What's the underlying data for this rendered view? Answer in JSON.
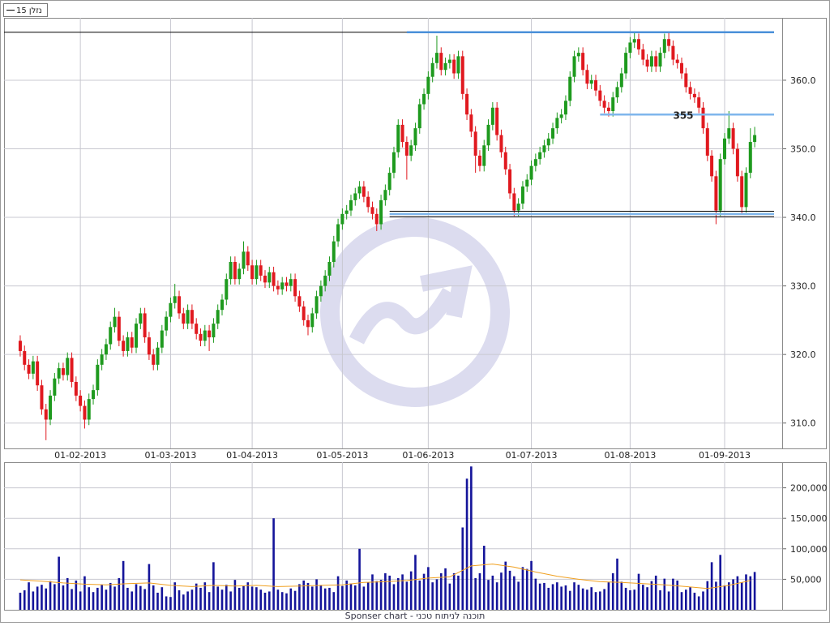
{
  "legend_label": "נזלן 15",
  "footer": "Sponser chart - תוכנה לניתוח טכני",
  "chart_data": [
    {
      "type": "candlestick",
      "up_color": "#1e9a1e",
      "down_color": "#e0191f",
      "grid": true,
      "xlim": [
        -3.2,
        177.4
      ],
      "ylim": [
        306.3,
        369.1
      ],
      "xticks": [
        {
          "value": 14,
          "label": "01-02-2013"
        },
        {
          "value": 35,
          "label": "01-03-2013"
        },
        {
          "value": 54,
          "label": "01-04-2013"
        },
        {
          "value": 75,
          "label": "01-05-2013"
        },
        {
          "value": 95,
          "label": "01-06-2013"
        },
        {
          "value": 119,
          "label": "01-07-2013"
        },
        {
          "value": 142,
          "label": "01-08-2013"
        },
        {
          "value": 164,
          "label": "01-09-2013"
        }
      ],
      "yticks": [
        {
          "value": 310,
          "label": "310.0"
        },
        {
          "value": 320,
          "label": "320.0"
        },
        {
          "value": 330,
          "label": "330.0"
        },
        {
          "value": 340,
          "label": "340.0"
        },
        {
          "value": 350,
          "label": "350.0"
        },
        {
          "value": 360,
          "label": "360.0"
        }
      ],
      "levels": [
        {
          "value": 367,
          "color": "#000000"
        },
        {
          "value": 367,
          "start": 90,
          "color": "#4a90d9"
        },
        {
          "value": 355,
          "start": 135,
          "color": "#7fb6ec",
          "labeled": true
        },
        {
          "value": 340.9,
          "start": 86,
          "color": "#000000"
        },
        {
          "value": 340.5,
          "start": 86,
          "color": "#7fb6ec"
        },
        {
          "value": 340.1,
          "start": 86,
          "color": "#000000"
        }
      ],
      "open": [
        322.0,
        320.5,
        318.5,
        317.2,
        319.0,
        315.5,
        312.0,
        310.5,
        314.0,
        316.5,
        318.0,
        317.0,
        319.5,
        316.0,
        314.0,
        312.5,
        310.5,
        313.5,
        314.8,
        318.5,
        320.0,
        321.5,
        324.0,
        325.5,
        322.0,
        320.5,
        322.5,
        321.0,
        324.5,
        326.0,
        322.5,
        320.0,
        318.5,
        321.0,
        323.5,
        325.5,
        327.5,
        328.5,
        326.0,
        324.5,
        326.5,
        324.5,
        323.0,
        322.0,
        323.5,
        322.5,
        324.5,
        326.5,
        328.0,
        331.0,
        333.5,
        331.0,
        332.5,
        335.0,
        333.0,
        331.0,
        333.0,
        331.5,
        330.5,
        332.0,
        330.0,
        329.5,
        330.5,
        330.0,
        331.0,
        328.5,
        327.0,
        325.0,
        324.0,
        326.0,
        328.5,
        330.0,
        331.5,
        333.5,
        336.5,
        339.0,
        340.5,
        341.0,
        342.5,
        343.5,
        344.5,
        343.0,
        341.5,
        340.5,
        339.0,
        342.5,
        344.0,
        346.5,
        349.5,
        353.5,
        351.0,
        349.0,
        350.5,
        353.0,
        356.5,
        358.0,
        360.5,
        362.5,
        364.0,
        361.5,
        362.5,
        363.0,
        361.0,
        363.5,
        358.0,
        355.0,
        352.5,
        349.0,
        347.5,
        350.5,
        353.5,
        356.0,
        352.0,
        349.5,
        347.0,
        343.5,
        341.0,
        342.0,
        344.5,
        345.5,
        347.5,
        348.5,
        349.5,
        350.5,
        351.5,
        353.0,
        354.5,
        355.0,
        357.0,
        360.5,
        363.5,
        364.0,
        361.5,
        359.5,
        360.0,
        358.5,
        357.0,
        356.0,
        355.5,
        357.5,
        359.0,
        361.0,
        364.0,
        365.5,
        366.0,
        364.5,
        363.0,
        362.0,
        363.5,
        362.0,
        364.0,
        366.0,
        365.0,
        363.0,
        362.5,
        361.0,
        359.0,
        358.0,
        357.5,
        356.0,
        353.0,
        349.0,
        346.0,
        341.0,
        348.5,
        351.5,
        353.0,
        350.0,
        346.0,
        341.5,
        346.5,
        351.0
      ],
      "high": [
        322.8,
        321.3,
        319.3,
        319.8,
        319.8,
        316.3,
        312.8,
        314.8,
        317.3,
        318.8,
        318.8,
        320.3,
        320.3,
        316.8,
        314.8,
        313.3,
        314.3,
        315.6,
        319.3,
        320.8,
        322.3,
        324.8,
        326.8,
        326.3,
        322.8,
        323.3,
        323.3,
        325.3,
        326.8,
        326.8,
        323.3,
        320.8,
        321.8,
        324.3,
        326.3,
        328.3,
        330.3,
        329.3,
        326.8,
        327.3,
        327.3,
        325.3,
        323.8,
        324.3,
        324.3,
        325.3,
        327.3,
        328.8,
        331.8,
        334.3,
        334.3,
        333.3,
        336.5,
        335.8,
        333.8,
        333.8,
        333.8,
        332.3,
        332.8,
        332.8,
        330.8,
        331.3,
        331.3,
        331.8,
        331.8,
        329.3,
        327.8,
        325.8,
        326.8,
        329.3,
        330.8,
        332.3,
        334.3,
        337.3,
        339.8,
        341.3,
        341.8,
        343.3,
        344.3,
        345.3,
        345.3,
        343.8,
        342.3,
        341.3,
        343.3,
        344.8,
        347.3,
        350.3,
        354.3,
        354.3,
        351.8,
        351.3,
        353.8,
        357.3,
        358.8,
        361.3,
        363.3,
        366.5,
        364.8,
        363.3,
        363.8,
        363.8,
        364.3,
        364.3,
        358.8,
        355.8,
        353.3,
        349.8,
        351.3,
        354.3,
        356.8,
        356.8,
        352.8,
        350.3,
        347.8,
        344.3,
        342.8,
        345.3,
        346.3,
        348.3,
        349.3,
        350.3,
        351.3,
        352.3,
        353.8,
        355.3,
        355.8,
        357.8,
        361.3,
        364.3,
        364.8,
        364.8,
        362.3,
        360.8,
        360.8,
        359.3,
        357.8,
        356.8,
        358.3,
        359.8,
        361.8,
        364.8,
        366.3,
        367.0,
        366.8,
        365.3,
        363.8,
        364.3,
        364.3,
        364.8,
        366.8,
        367.0,
        365.8,
        363.8,
        363.3,
        361.8,
        359.8,
        358.8,
        358.3,
        356.8,
        353.8,
        349.8,
        346.8,
        349.3,
        352.3,
        355.5,
        353.8,
        350.8,
        346.8,
        347.3,
        353.0,
        353.2
      ],
      "low": [
        319.7,
        317.7,
        316.4,
        316.4,
        314.7,
        311.2,
        307.5,
        309.7,
        313.2,
        315.7,
        316.2,
        316.2,
        315.2,
        313.2,
        311.7,
        309.2,
        309.7,
        312.7,
        314.0,
        317.7,
        319.2,
        320.7,
        323.2,
        321.2,
        319.7,
        319.7,
        320.2,
        320.2,
        323.7,
        321.7,
        319.2,
        317.7,
        317.7,
        320.2,
        322.7,
        324.7,
        326.7,
        325.2,
        323.7,
        323.7,
        323.7,
        322.2,
        321.2,
        321.2,
        320.5,
        321.7,
        323.7,
        325.7,
        327.2,
        330.2,
        330.2,
        330.2,
        331.7,
        332.2,
        330.2,
        330.2,
        330.7,
        329.7,
        329.7,
        329.2,
        328.7,
        328.7,
        329.2,
        329.2,
        327.7,
        326.2,
        324.2,
        322.8,
        323.2,
        325.2,
        327.7,
        329.2,
        330.7,
        332.7,
        335.7,
        338.2,
        339.7,
        340.2,
        341.7,
        342.7,
        342.2,
        340.7,
        339.7,
        338.0,
        338.2,
        341.7,
        343.2,
        345.7,
        348.7,
        350.2,
        345.5,
        348.2,
        349.7,
        352.2,
        355.7,
        357.2,
        359.7,
        361.7,
        360.7,
        360.7,
        361.7,
        360.2,
        360.2,
        357.2,
        354.2,
        351.7,
        346.5,
        346.7,
        346.7,
        349.7,
        352.7,
        351.2,
        348.7,
        346.2,
        342.7,
        340.2,
        340.2,
        341.2,
        343.7,
        344.7,
        346.7,
        347.7,
        348.7,
        349.7,
        350.7,
        352.2,
        353.7,
        354.2,
        356.2,
        359.7,
        362.7,
        360.7,
        358.7,
        358.7,
        357.7,
        356.2,
        355.2,
        354.7,
        354.7,
        356.7,
        358.2,
        360.2,
        363.2,
        364.7,
        363.7,
        362.2,
        361.2,
        361.2,
        361.2,
        361.2,
        363.2,
        364.2,
        362.2,
        361.7,
        360.2,
        358.2,
        357.2,
        356.7,
        355.2,
        352.2,
        348.2,
        345.2,
        339.0,
        340.2,
        347.7,
        350.7,
        349.2,
        345.2,
        340.5,
        340.7,
        345.7,
        350.2
      ],
      "close": [
        320.5,
        318.5,
        317.2,
        319.0,
        315.5,
        312.0,
        310.5,
        314.0,
        316.5,
        318.0,
        317.0,
        319.5,
        316.0,
        314.0,
        312.5,
        310.5,
        313.5,
        314.8,
        318.5,
        320.0,
        321.5,
        324.0,
        325.5,
        322.0,
        320.5,
        322.5,
        321.0,
        324.5,
        326.0,
        322.5,
        320.0,
        318.5,
        321.0,
        323.5,
        325.5,
        327.5,
        328.5,
        326.0,
        324.5,
        326.5,
        324.5,
        323.0,
        322.0,
        323.5,
        322.5,
        324.5,
        326.5,
        328.0,
        331.0,
        333.5,
        331.0,
        332.5,
        335.0,
        333.0,
        331.0,
        333.0,
        331.5,
        330.5,
        332.0,
        330.0,
        329.5,
        330.5,
        330.0,
        331.0,
        328.5,
        327.0,
        325.0,
        324.0,
        326.0,
        328.5,
        330.0,
        331.5,
        333.5,
        336.5,
        339.0,
        340.5,
        341.0,
        342.5,
        343.5,
        344.5,
        343.0,
        341.5,
        340.5,
        339.0,
        342.5,
        344.0,
        346.5,
        349.5,
        353.5,
        351.0,
        349.0,
        350.5,
        353.0,
        356.5,
        358.0,
        360.5,
        362.5,
        364.0,
        361.5,
        362.5,
        363.0,
        361.0,
        363.5,
        358.0,
        355.0,
        352.5,
        349.0,
        347.5,
        350.5,
        353.5,
        356.0,
        352.0,
        349.5,
        347.0,
        343.5,
        341.0,
        342.0,
        344.5,
        345.5,
        347.5,
        348.5,
        349.5,
        350.5,
        351.5,
        353.0,
        354.5,
        355.0,
        357.0,
        360.5,
        363.5,
        364.0,
        361.5,
        359.5,
        360.0,
        358.5,
        357.0,
        356.0,
        355.5,
        357.5,
        359.0,
        361.0,
        364.0,
        365.5,
        366.0,
        364.5,
        363.0,
        362.0,
        363.5,
        362.0,
        364.0,
        366.0,
        365.0,
        363.0,
        362.5,
        361.0,
        359.0,
        358.0,
        357.5,
        356.0,
        353.0,
        349.0,
        346.0,
        341.0,
        348.5,
        351.5,
        353.0,
        350.0,
        346.0,
        341.5,
        346.5,
        351.0,
        352.0
      ]
    },
    {
      "type": "bar",
      "color": "#14149a",
      "grid": true,
      "xlim": [
        -3.2,
        177.4
      ],
      "ylim": [
        0,
        242000
      ],
      "yticks": [
        {
          "value": 50000,
          "label": "50,000"
        },
        {
          "value": 100000,
          "label": "100,000"
        },
        {
          "value": 150000,
          "label": "150,000"
        },
        {
          "value": 200000,
          "label": "200,000"
        }
      ],
      "values": [
        28000,
        32000,
        45000,
        30000,
        38000,
        41000,
        35000,
        47000,
        42000,
        87000,
        40000,
        52000,
        34000,
        48000,
        30000,
        55000,
        37000,
        29000,
        36000,
        41000,
        33000,
        44000,
        38000,
        52000,
        80000,
        36000,
        30000,
        42000,
        39000,
        34000,
        75000,
        40000,
        28000,
        37000,
        22000,
        21000,
        45000,
        32000,
        25000,
        30000,
        33000,
        43000,
        36000,
        45000,
        29000,
        78000,
        38000,
        33000,
        41000,
        30000,
        49000,
        36000,
        39000,
        45000,
        38000,
        37000,
        33000,
        28000,
        30000,
        150000,
        33000,
        29000,
        27000,
        35000,
        31000,
        42000,
        48000,
        44000,
        38000,
        50000,
        40000,
        35000,
        36000,
        29000,
        55000,
        39000,
        48000,
        43000,
        40000,
        100000,
        38000,
        45000,
        58000,
        47000,
        49000,
        60000,
        56000,
        42000,
        52000,
        58000,
        46000,
        63000,
        90000,
        48000,
        59000,
        70000,
        45000,
        50000,
        60000,
        68000,
        43000,
        60000,
        56000,
        135000,
        215000,
        235000,
        52000,
        60000,
        105000,
        49000,
        56000,
        45000,
        61000,
        79000,
        64000,
        55000,
        46000,
        70000,
        67000,
        80000,
        51000,
        43000,
        44000,
        36000,
        42000,
        45000,
        38000,
        40000,
        31000,
        45000,
        41000,
        35000,
        33000,
        37000,
        29000,
        30000,
        34000,
        45000,
        60000,
        84000,
        46000,
        36000,
        32000,
        33000,
        59000,
        41000,
        37000,
        47000,
        56000,
        32000,
        51000,
        30000,
        51000,
        48000,
        29000,
        33000,
        37000,
        28000,
        22000,
        30000,
        47000,
        78000,
        46000,
        90000,
        40000,
        45000,
        50000,
        55000,
        45000,
        58000,
        55000,
        62000
      ],
      "ma": {
        "color": "#f0a020",
        "x": [
          0,
          5,
          10,
          15,
          20,
          25,
          30,
          35,
          40,
          45,
          50,
          55,
          60,
          65,
          70,
          75,
          80,
          85,
          90,
          95,
          100,
          105,
          110,
          115,
          120,
          125,
          130,
          135,
          140,
          145,
          150,
          155,
          160,
          165,
          170
        ],
        "values": [
          49000,
          47000,
          44000,
          42000,
          41000,
          43000,
          44000,
          40000,
          38000,
          40000,
          39000,
          40000,
          38000,
          39000,
          40000,
          41000,
          45000,
          46000,
          48000,
          52000,
          54000,
          72000,
          75000,
          70000,
          62000,
          55000,
          50000,
          46000,
          45000,
          43000,
          41000,
          38000,
          35000,
          40000,
          48000
        ]
      }
    }
  ]
}
